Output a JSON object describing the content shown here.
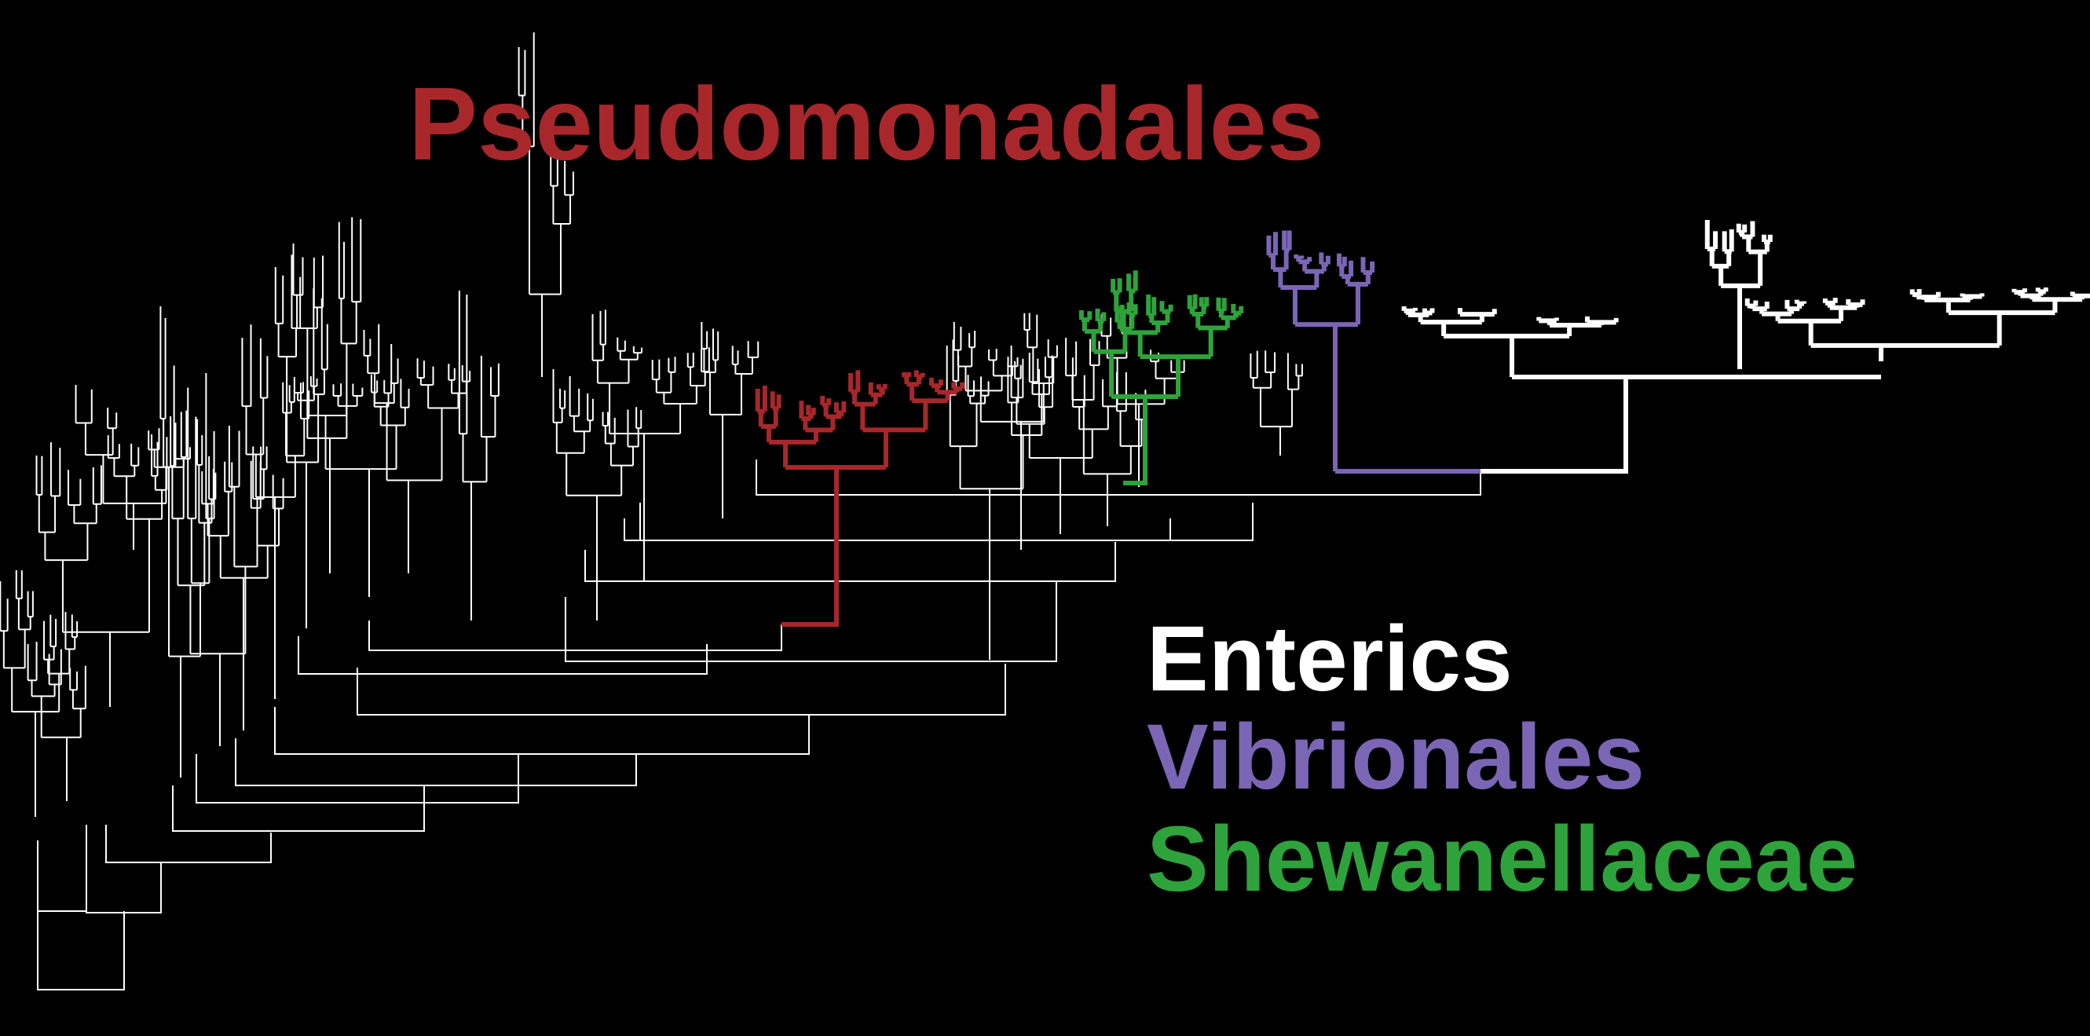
{
  "labels": {
    "pseudomonadales": "Pseudomonadales",
    "enterics": "Enterics",
    "vibrionales": "Vibrionales",
    "shewanellaceae": "Shewanellaceae"
  },
  "colors": {
    "background": "#000000",
    "backbone": "#ffffff",
    "pseudomonadales": "#a8272b",
    "enterics": "#ffffff",
    "vibrionales": "#7b65b5",
    "shewanellaceae": "#2ea33b"
  },
  "clades": [
    {
      "key": "backbone",
      "highlighted": false
    },
    {
      "key": "pseudomonadales",
      "highlighted": true
    },
    {
      "key": "shewanellaceae",
      "highlighted": true
    },
    {
      "key": "vibrionales",
      "highlighted": true
    },
    {
      "key": "enterics",
      "highlighted": true
    }
  ]
}
